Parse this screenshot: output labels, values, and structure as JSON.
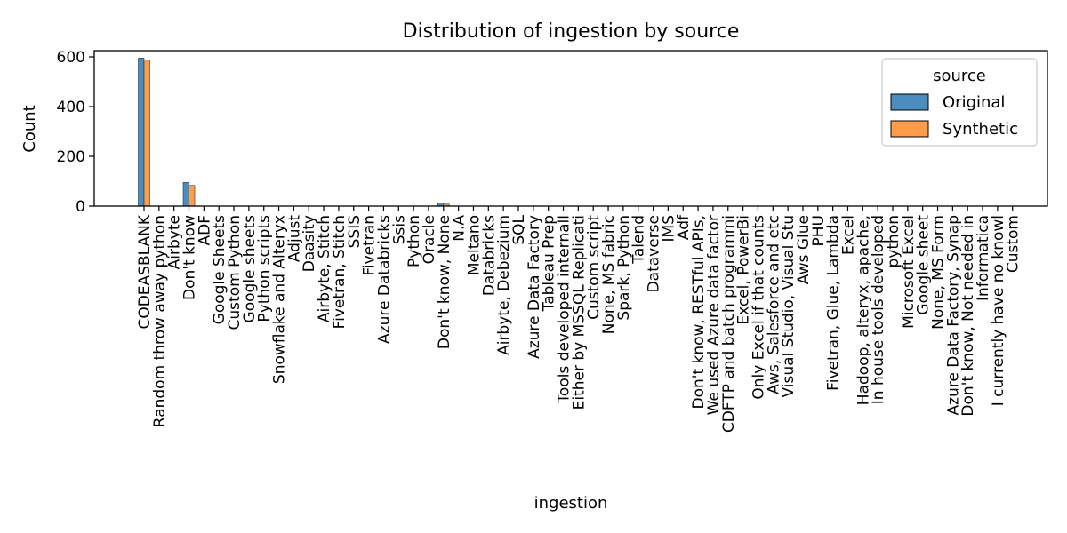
{
  "chart_data": {
    "type": "bar",
    "title": "Distribution of ingestion by source",
    "xlabel": "ingestion",
    "ylabel": "Count",
    "ylim": [
      0,
      625
    ],
    "yticks": [
      0,
      200,
      400,
      600
    ],
    "grid": false,
    "legend": {
      "title": "source",
      "placement": "top-right"
    },
    "categories": [
      "CODEASBLANK",
      "Random throw away python",
      "Airbyte",
      "Don't know",
      "ADF",
      "Google Sheets",
      "Custom Python",
      "Google sheets",
      "Python scripts",
      "Snowflake and Alteryx",
      "Adjust",
      "Daasity",
      "Airbyte, Stitch",
      "Fivetran, Stitch",
      "SSIS",
      "Fivetran",
      "Azure Databricks",
      "Ssis",
      "Python",
      "Oracle",
      "Don't know, None",
      "N.A",
      "Meltano",
      "Databricks",
      "Airbyte, Debezium",
      "SQL",
      "Azure Data Factory",
      "Tableau Prep",
      "Tools developed internall",
      "Either by MSSQL Replicati",
      "Custom script",
      "None, MS fabric",
      "Spark, Python",
      "Talend",
      "Dataverse",
      "IMS",
      "Adf",
      "Don't know, RESTful APIs,",
      "We used Azure data factor",
      "CDFTP and batch programmi",
      "Excel, PowerBi",
      "Only Excel if that counts",
      "Aws, Salesforce and etc",
      "Visual Studio, Visual Stu",
      "Aws Glue",
      "PHU",
      "Fivetran, Glue, Lambda",
      "Excel",
      "Hadoop, alteryx, apache,",
      "In house tools developed",
      "python",
      "Microsoft Excel",
      "Google sheet",
      "None, MS Form",
      "Azure Data Factory, Synap",
      "Don't know, Not needed in",
      "Informatica",
      "I currently have no knowl",
      "Custom"
    ],
    "series": [
      {
        "name": "Original",
        "color": "#4c8dbf",
        "values": [
          595,
          0,
          0,
          95,
          0,
          0,
          0,
          0,
          0,
          0,
          0,
          0,
          0,
          0,
          0,
          0,
          0,
          0,
          0,
          0,
          13,
          0,
          0,
          0,
          0,
          0,
          0,
          0,
          0,
          0,
          0,
          0,
          0,
          0,
          0,
          0,
          0,
          0,
          0,
          0,
          0,
          0,
          0,
          0,
          0,
          0,
          0,
          0,
          0,
          0,
          0,
          0,
          0,
          0,
          0,
          0,
          0,
          0,
          0
        ]
      },
      {
        "name": "Synthetic",
        "color": "#ff9c4a",
        "values": [
          588,
          0,
          0,
          83,
          0,
          0,
          0,
          0,
          0,
          0,
          0,
          0,
          0,
          0,
          0,
          0,
          0,
          0,
          0,
          0,
          8,
          0,
          0,
          0,
          0,
          0,
          0,
          0,
          0,
          0,
          0,
          0,
          0,
          0,
          0,
          0,
          0,
          0,
          0,
          0,
          0,
          0,
          0,
          0,
          0,
          0,
          0,
          0,
          0,
          0,
          0,
          0,
          0,
          0,
          0,
          0,
          0,
          0,
          0
        ]
      }
    ]
  }
}
